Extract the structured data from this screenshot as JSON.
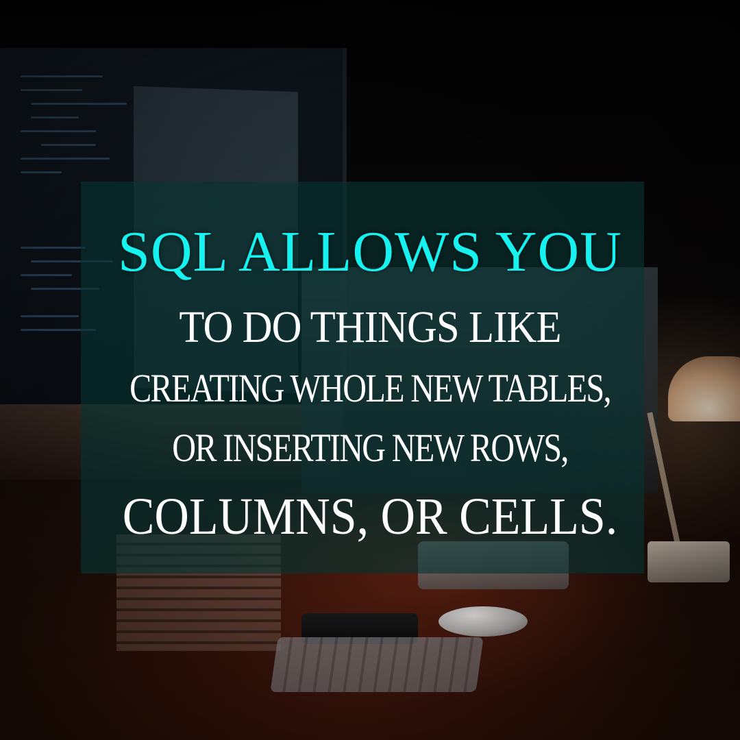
{
  "headline": {
    "line1": "SQL ALLOWS YOU",
    "line2": "TO DO THINGS LIKE",
    "line3": "CREATING WHOLE NEW TABLES,",
    "line4": "OR INSERTING NEW ROWS,",
    "line5": "COLUMNS, OR CELLS."
  },
  "colors": {
    "accent": "#16f2f0",
    "text": "#ffffff",
    "panel": "#063432"
  }
}
